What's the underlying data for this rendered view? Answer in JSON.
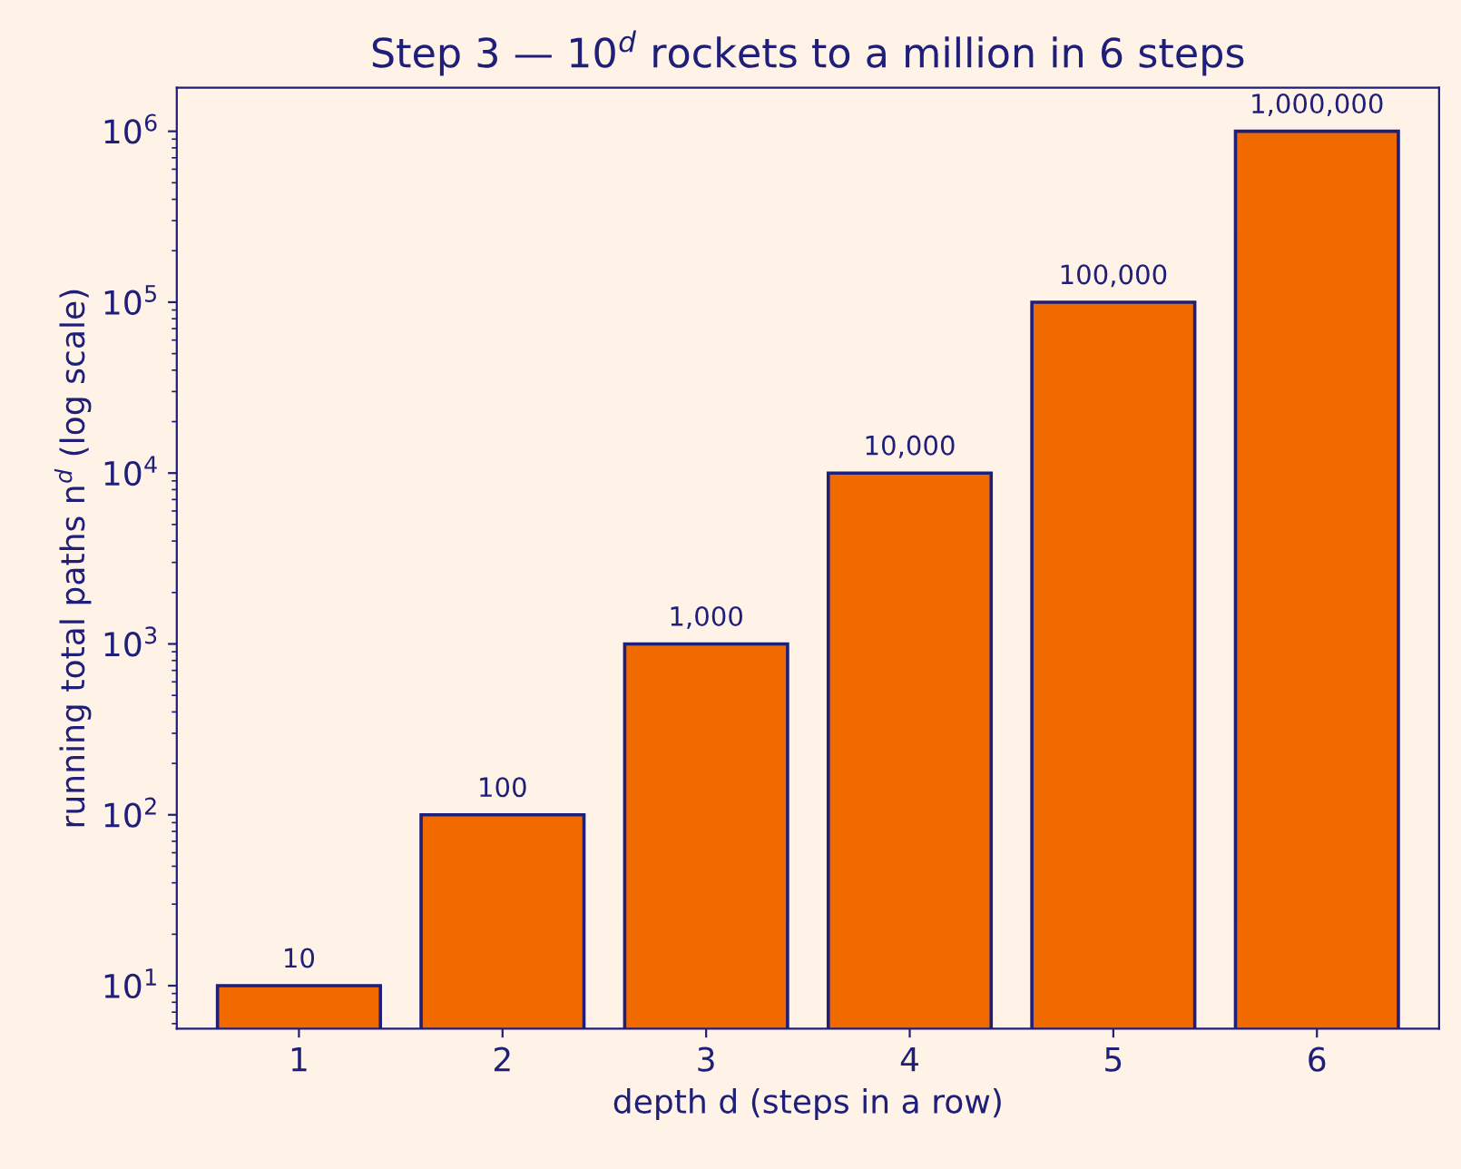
{
  "chart_data": {
    "type": "bar",
    "title": "Step 3 — 10$^{d}$ rockets to a million in 6 steps",
    "xlabel": "depth d (steps in a row)",
    "ylabel": "running total paths n$^{d}$ (log scale)",
    "categories": [
      "1",
      "2",
      "3",
      "4",
      "5",
      "6"
    ],
    "values": [
      10,
      100,
      1000,
      10000,
      100000,
      1000000
    ],
    "value_labels": [
      "10",
      "100",
      "1,000",
      "10,000",
      "100,000",
      "1,000,000"
    ],
    "color": "#f06a00",
    "log": true,
    "ylim": [
      5.6,
      1800000
    ],
    "yticks": [
      {
        "value": 10,
        "label": "10$^{1}$"
      },
      {
        "value": 100,
        "label": "10$^{2}$"
      },
      {
        "value": 1000,
        "label": "10$^{3}$"
      },
      {
        "value": 10000,
        "label": "10$^{4}$"
      },
      {
        "value": 100000,
        "label": "10$^{5}$"
      },
      {
        "value": 1000000,
        "label": "10$^{6}$"
      }
    ],
    "grid": false,
    "legend": false
  }
}
